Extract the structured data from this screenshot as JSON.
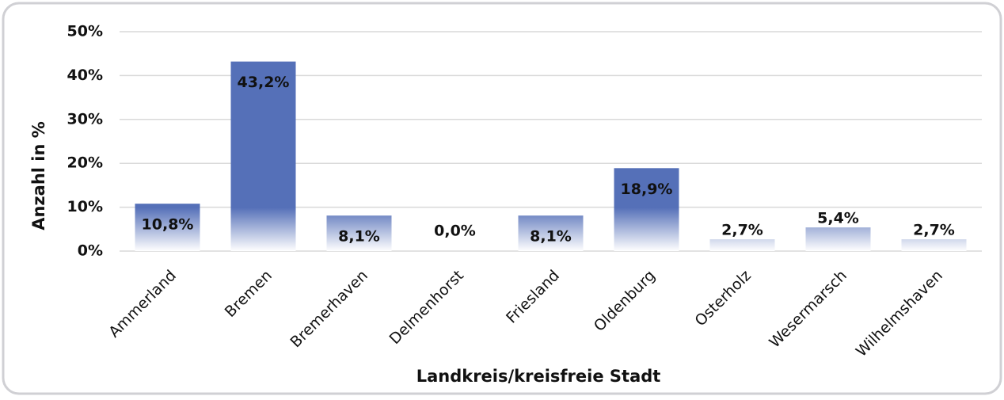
{
  "chart_data": {
    "type": "bar",
    "categories": [
      "Ammerland",
      "Bremen",
      "Bremerhaven",
      "Delmenhorst",
      "Friesland",
      "Oldenburg",
      "Osterholz",
      "Wesermarsch",
      "Wilhelmshaven"
    ],
    "values": [
      10.8,
      43.2,
      8.1,
      0.0,
      8.1,
      18.9,
      2.7,
      5.4,
      2.7
    ],
    "value_labels": [
      "10,8%",
      "43,2%",
      "8,1%",
      "0,0%",
      "8,1%",
      "18,9%",
      "2,7%",
      "5,4%",
      "2,7%"
    ],
    "color": "#5570b8",
    "xlabel": "Landkreis/kreisfreie Stadt",
    "ylabel": "Anzahl in %",
    "ylim": [
      0,
      50
    ],
    "yticks": [
      {
        "value": 0,
        "label": "0%"
      },
      {
        "value": 10,
        "label": "10%"
      },
      {
        "value": 20,
        "label": "20%"
      },
      {
        "value": 30,
        "label": "30%"
      },
      {
        "value": 40,
        "label": "40%"
      },
      {
        "value": 50,
        "label": "50%"
      }
    ],
    "grid": true
  }
}
